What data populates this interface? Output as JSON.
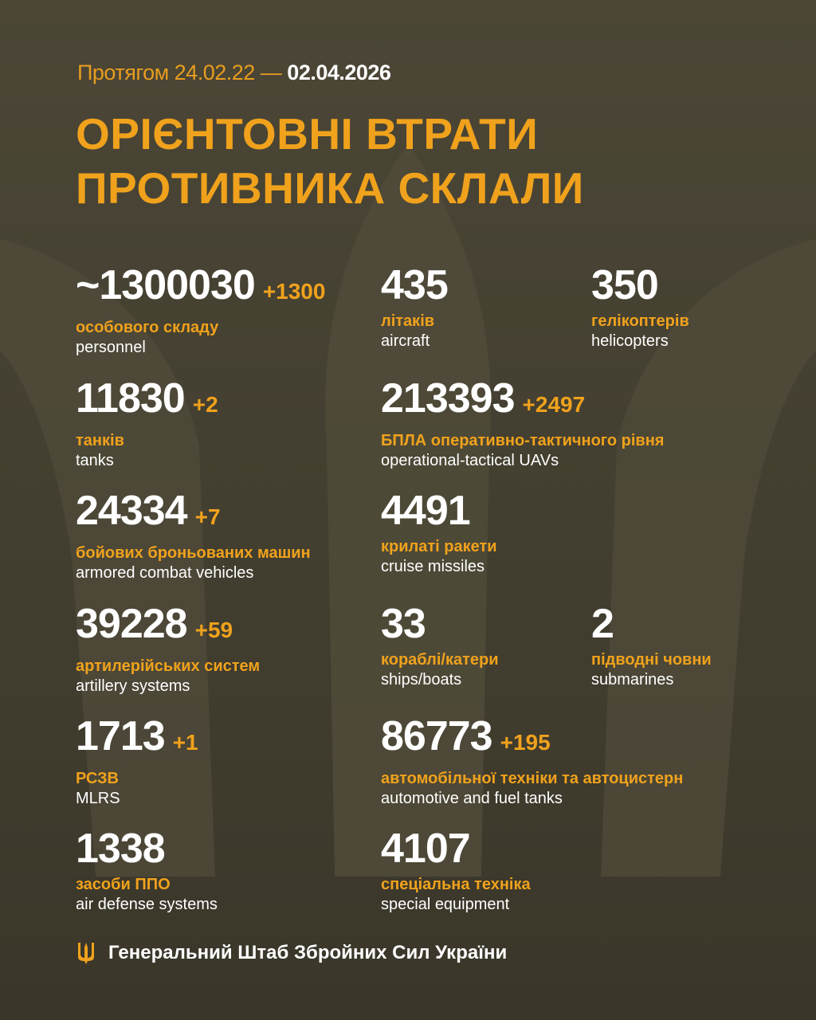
{
  "header": {
    "period_prefix": "Протягом 24.02.22 —",
    "period_end": "02.04.2026",
    "title_line1": "ОРІЄНТОВНІ ВТРАТИ",
    "title_line2": "ПРОТИВНИКА СКЛАЛИ"
  },
  "stats": [
    {
      "value": "~1300030",
      "delta": "+1300",
      "uk": "особового складу",
      "en": "personnel"
    },
    {
      "value": "435",
      "delta": "",
      "uk": "літаків",
      "en": "aircraft"
    },
    {
      "value": "350",
      "delta": "",
      "uk": "гелікоптерів",
      "en": "helicopters"
    },
    {
      "value": "11830",
      "delta": "+2",
      "uk": "танків",
      "en": "tanks"
    },
    {
      "value": "213393",
      "delta": "+2497",
      "uk": "БПЛА оперативно-тактичного рівня",
      "en": "operational-tactical UAVs"
    },
    {
      "value": "24334",
      "delta": "+7",
      "uk": "бойових броньованих машин",
      "en": "armored combat vehicles"
    },
    {
      "value": "4491",
      "delta": "",
      "uk": "крилаті ракети",
      "en": "cruise missiles"
    },
    {
      "value": "39228",
      "delta": "+59",
      "uk": "артилерійських систем",
      "en": "artillery systems"
    },
    {
      "value": "33",
      "delta": "",
      "uk": "кораблі/катери",
      "en": "ships/boats"
    },
    {
      "value": "2",
      "delta": "",
      "uk": "підводні човни",
      "en": "submarines"
    },
    {
      "value": "1713",
      "delta": "+1",
      "uk": "РСЗВ",
      "en": "MLRS"
    },
    {
      "value": "86773",
      "delta": "+195",
      "uk": "автомобільної техніки та автоцистерн",
      "en": "automotive and fuel tanks"
    },
    {
      "value": "1338",
      "delta": "",
      "uk": "засоби ППО",
      "en": "air defense systems"
    },
    {
      "value": "4107",
      "delta": "",
      "uk": "спеціальна техніка",
      "en": "special equipment"
    }
  ],
  "footer": {
    "text": "Генеральний Штаб Збройних Сил України",
    "icon": "trident-icon"
  },
  "colors": {
    "accent": "#f0a21c",
    "background": "#4b4636",
    "text": "#ffffff"
  }
}
